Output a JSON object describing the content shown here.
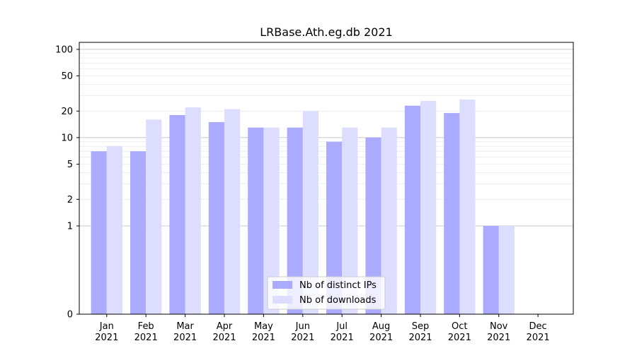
{
  "chart_data": {
    "type": "bar",
    "title": "LRBase.Ath.eg.db 2021",
    "xlabel": "",
    "ylabel": "",
    "y_scale": "symlog",
    "ylim": [
      0,
      120
    ],
    "yticks": [
      0,
      1,
      2,
      5,
      10,
      20,
      50,
      100
    ],
    "ytick_labels": [
      "0",
      "1",
      "2",
      "5",
      "10",
      "20",
      "50",
      "100"
    ],
    "categories": [
      "Jan",
      "Feb",
      "Mar",
      "Apr",
      "May",
      "Jun",
      "Jul",
      "Aug",
      "Sep",
      "Oct",
      "Nov",
      "Dec"
    ],
    "category_year": "2021",
    "series": [
      {
        "name": "Nb of distinct IPs",
        "color": "#aaaaff",
        "values": [
          7,
          7,
          18,
          15,
          13,
          13,
          9,
          10,
          23,
          19,
          1,
          0
        ]
      },
      {
        "name": "Nb of downloads",
        "color": "#ddddff",
        "values": [
          8,
          16,
          22,
          21,
          13,
          20,
          13,
          13,
          26,
          27,
          1,
          0
        ]
      }
    ],
    "legend": "bottom-center",
    "grid": "horizontal"
  }
}
